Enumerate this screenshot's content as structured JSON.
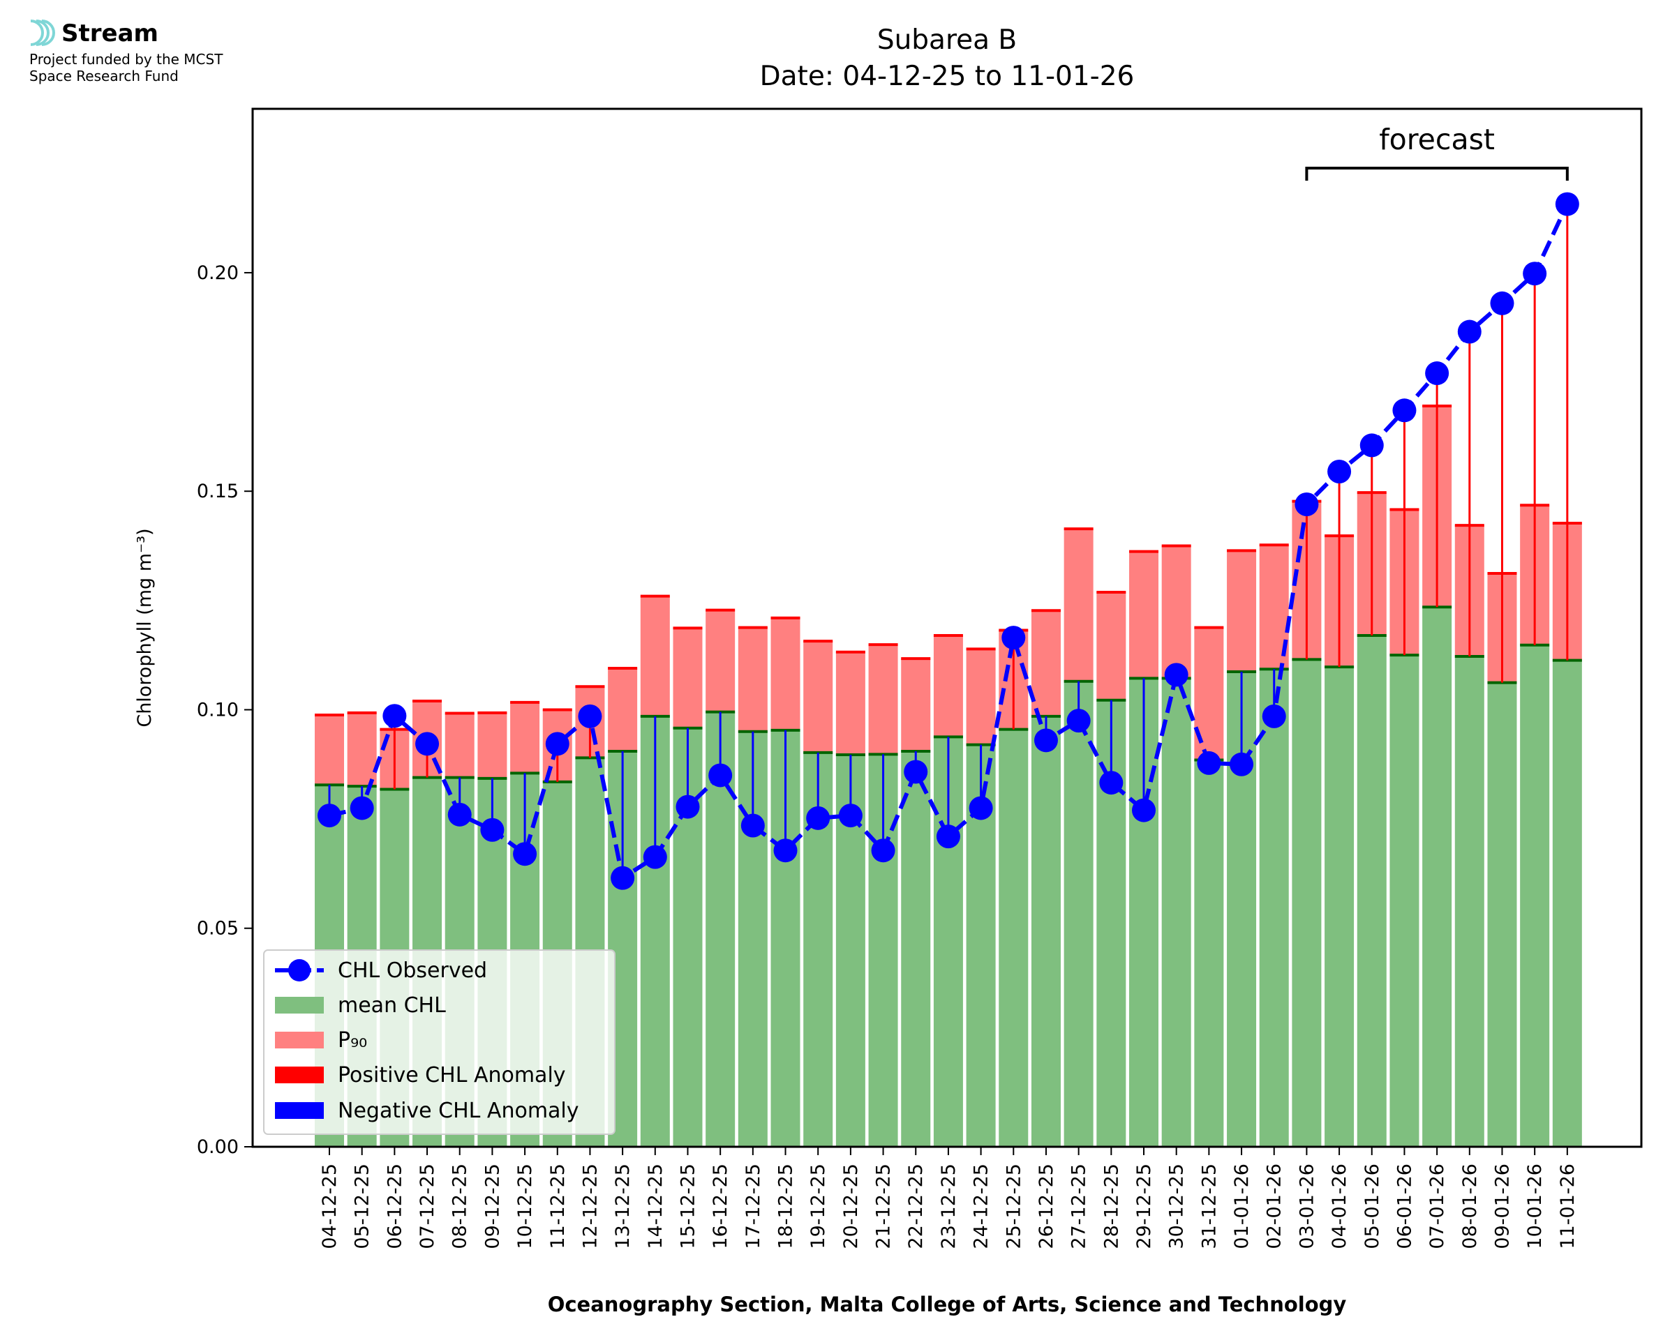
{
  "logo": {
    "brand": "Stream",
    "line1": "Project funded by the MCST",
    "line2": "Space Research Fund",
    "icon": "wave-rings-icon",
    "color": "#7fd6d6"
  },
  "chart_data": {
    "type": "bar",
    "title": "Subarea B",
    "subtitle": "Date: 04-12-25 to 11-01-26",
    "xlabel": "Oceanography Section, Malta College of Arts, Science and Technology",
    "ylabel": "Chlorophyll (mg m⁻³)",
    "ylim": [
      0,
      0.2375
    ],
    "yticks": [
      0.0,
      0.05,
      0.1,
      0.15,
      0.2
    ],
    "ytick_labels": [
      "0.00",
      "0.05",
      "0.10",
      "0.15",
      "0.20"
    ],
    "categories": [
      "04-12-25",
      "05-12-25",
      "06-12-25",
      "07-12-25",
      "08-12-25",
      "09-12-25",
      "10-12-25",
      "11-12-25",
      "12-12-25",
      "13-12-25",
      "14-12-25",
      "15-12-25",
      "16-12-25",
      "17-12-25",
      "18-12-25",
      "19-12-25",
      "20-12-25",
      "21-12-25",
      "22-12-25",
      "23-12-25",
      "24-12-25",
      "25-12-25",
      "26-12-25",
      "27-12-25",
      "28-12-25",
      "29-12-25",
      "30-12-25",
      "31-12-25",
      "01-01-26",
      "02-01-26",
      "03-01-26",
      "04-01-26",
      "05-01-26",
      "06-01-26",
      "07-01-26",
      "08-01-26",
      "09-01-26",
      "10-01-26",
      "11-01-26"
    ],
    "series": [
      {
        "name": "CHL Observed",
        "color": "#0000ff",
        "values": [
          0.0758,
          0.0775,
          0.0986,
          0.0922,
          0.076,
          0.0725,
          0.067,
          0.0922,
          0.0985,
          0.0615,
          0.0663,
          0.0778,
          0.085,
          0.0735,
          0.0678,
          0.0752,
          0.0758,
          0.0678,
          0.0858,
          0.071,
          0.0775,
          0.1165,
          0.093,
          0.0975,
          0.0833,
          0.077,
          0.108,
          0.0878,
          0.0875,
          0.0985,
          0.147,
          0.1545,
          0.1605,
          0.1685,
          0.177,
          0.1865,
          0.193,
          0.1998,
          0.2157
        ]
      },
      {
        "name": "mean CHL",
        "color": "#7fbf7f",
        "values": [
          0.0828,
          0.0825,
          0.0818,
          0.0845,
          0.0845,
          0.0843,
          0.0855,
          0.0835,
          0.089,
          0.0905,
          0.0985,
          0.0958,
          0.0995,
          0.095,
          0.0953,
          0.0902,
          0.0897,
          0.0898,
          0.0905,
          0.0938,
          0.092,
          0.0955,
          0.0985,
          0.1065,
          0.1022,
          0.1072,
          0.1072,
          0.0885,
          0.1087,
          0.1093,
          0.1115,
          0.1098,
          0.117,
          0.1125,
          0.1235,
          0.1122,
          0.1062,
          0.1148,
          0.1113
        ]
      },
      {
        "name": "P₉₀",
        "color": "#ff8080",
        "values": [
          0.0988,
          0.0993,
          0.0955,
          0.102,
          0.0992,
          0.0993,
          0.1017,
          0.1,
          0.1053,
          0.1095,
          0.126,
          0.1187,
          0.1228,
          0.1188,
          0.121,
          0.1157,
          0.1132,
          0.1149,
          0.1117,
          0.117,
          0.1139,
          0.1182,
          0.1227,
          0.1414,
          0.1269,
          0.1362,
          0.1375,
          0.1188,
          0.1364,
          0.1377,
          0.1477,
          0.1398,
          0.1497,
          0.1458,
          0.1695,
          0.1422,
          0.1312,
          0.1468,
          0.1427
        ]
      }
    ],
    "legend": {
      "placement": "lower-left",
      "entries": [
        "CHL Observed",
        "mean CHL",
        "P₉₀",
        "Positive CHL Anomaly",
        "Negative CHL Anomaly"
      ],
      "colors": [
        "#0000ff",
        "#7fbf7f",
        "#ff8080",
        "#ff0000",
        "#0000ff"
      ]
    },
    "annotation": {
      "label": "forecast",
      "from": "03-01-26",
      "to": "11-01-26"
    },
    "anomaly_colors": {
      "positive": "#ff0000",
      "negative": "#0000ff"
    }
  }
}
